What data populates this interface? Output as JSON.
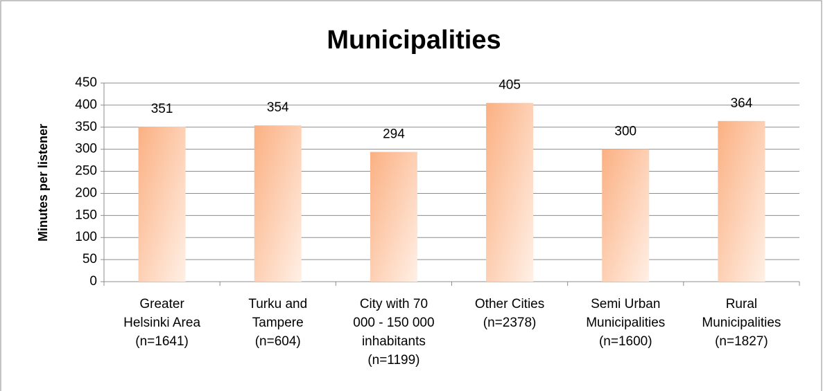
{
  "chart_data": {
    "type": "bar",
    "title": "Municipalities",
    "y_label": "Minutes per listener",
    "categories": [
      [
        "Greater",
        "Helsinki Area",
        "(n=1641)"
      ],
      [
        "Turku and",
        "Tampere",
        "(n=604)"
      ],
      [
        "City with 70",
        "000 - 150 000",
        "inhabitants",
        "(n=1199)"
      ],
      [
        "Other Cities",
        "(n=2378)"
      ],
      [
        "Semi Urban",
        "Municipalities",
        "(n=1600)"
      ],
      [
        "Rural",
        "Municipalities",
        "(n=1827)"
      ]
    ],
    "values": [
      351,
      354,
      294,
      405,
      300,
      364
    ],
    "color": "#fbb082",
    "ylim": [
      0,
      450
    ],
    "yticks": [
      0,
      50,
      100,
      150,
      200,
      250,
      300,
      350,
      400,
      450
    ],
    "grid": true
  }
}
